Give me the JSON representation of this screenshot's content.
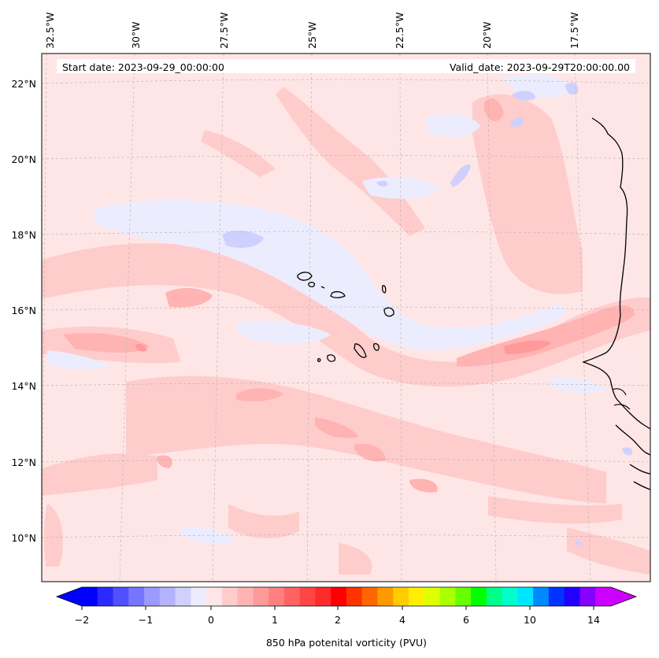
{
  "map": {
    "start_date": "Start date: 2023-09-29_00:00:00",
    "valid_date": "Valid_date: 2023-09-29T20:00:00.00",
    "lon_labels": [
      "32.5°W",
      "30°W",
      "27.5°W",
      "25°W",
      "22.5°W",
      "20°W",
      "17.5°W"
    ],
    "lat_labels": [
      "22°N",
      "20°N",
      "18°N",
      "16°N",
      "14°N",
      "12°N",
      "10°N"
    ],
    "extent": {
      "lon": [
        -32.6,
        -15.4
      ],
      "lat": [
        8.9,
        22.8
      ]
    },
    "gridlines": true,
    "background_color": "#ffe6e6"
  },
  "colorbar": {
    "label": "850 hPa potenital vorticity (PVU)",
    "tick_labels": [
      "−2",
      "−1",
      "0",
      "1",
      "2",
      "4",
      "6",
      "10",
      "14"
    ],
    "colors": [
      "#0000ff",
      "#2a2aff",
      "#5050ff",
      "#7575ff",
      "#9a9aff",
      "#b3b3ff",
      "#d0d0ff",
      "#ececff",
      "#ffe6e6",
      "#ffcccc",
      "#ffb3b3",
      "#ff9a9a",
      "#ff8080",
      "#ff6262",
      "#ff4545",
      "#ff2a2a",
      "#ff0000",
      "#ff3300",
      "#ff6600",
      "#ff9900",
      "#ffcc00",
      "#ffee00",
      "#ddff00",
      "#aaff00",
      "#66ff00",
      "#00ff00",
      "#00ff88",
      "#00ffcc",
      "#00e5ff",
      "#0088ff",
      "#0033ff",
      "#2200ff",
      "#8800ff",
      "#cc00ff"
    ],
    "extend_min_color": "#0000ff",
    "extend_max_color": "#cc00ff"
  }
}
